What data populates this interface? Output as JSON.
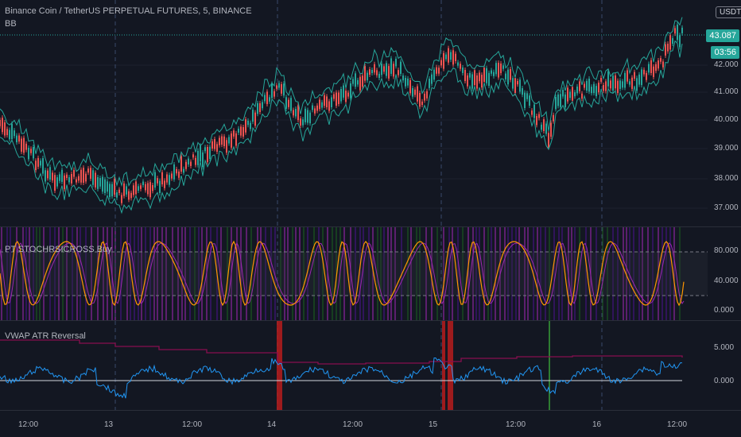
{
  "header": {
    "title": "Binance Coin / TetherUS PERPETUAL FUTURES, 5, BINANCE",
    "indicator": "BB",
    "currency": "USDT"
  },
  "price_axis": {
    "ticks": [
      "42.000",
      "41.000",
      "40.000",
      "39.000",
      "38.000",
      "37.000"
    ],
    "last_price": "43.087",
    "countdown": "03:56"
  },
  "stoch_pane": {
    "label": "PT STOCHRSICROSS Buy",
    "ticks": [
      "80.000",
      "40.000",
      "0.000"
    ]
  },
  "vwap_pane": {
    "label": "VWAP ATR Reversal",
    "ticks": [
      "5.000",
      "0.000"
    ]
  },
  "time_axis": {
    "ticks": [
      "12:00",
      "13",
      "12:00",
      "14",
      "12:00",
      "15",
      "12:00",
      "16",
      "12:00"
    ]
  },
  "colors": {
    "background": "#131722",
    "up": "#26a69a",
    "down": "#ef5350",
    "band": "#26a69a",
    "stoch_orange": "#ff9800",
    "stoch_purple": "#9c27b0",
    "vwap_blue": "#2196f3",
    "vwap_red": "#880e4f"
  }
}
